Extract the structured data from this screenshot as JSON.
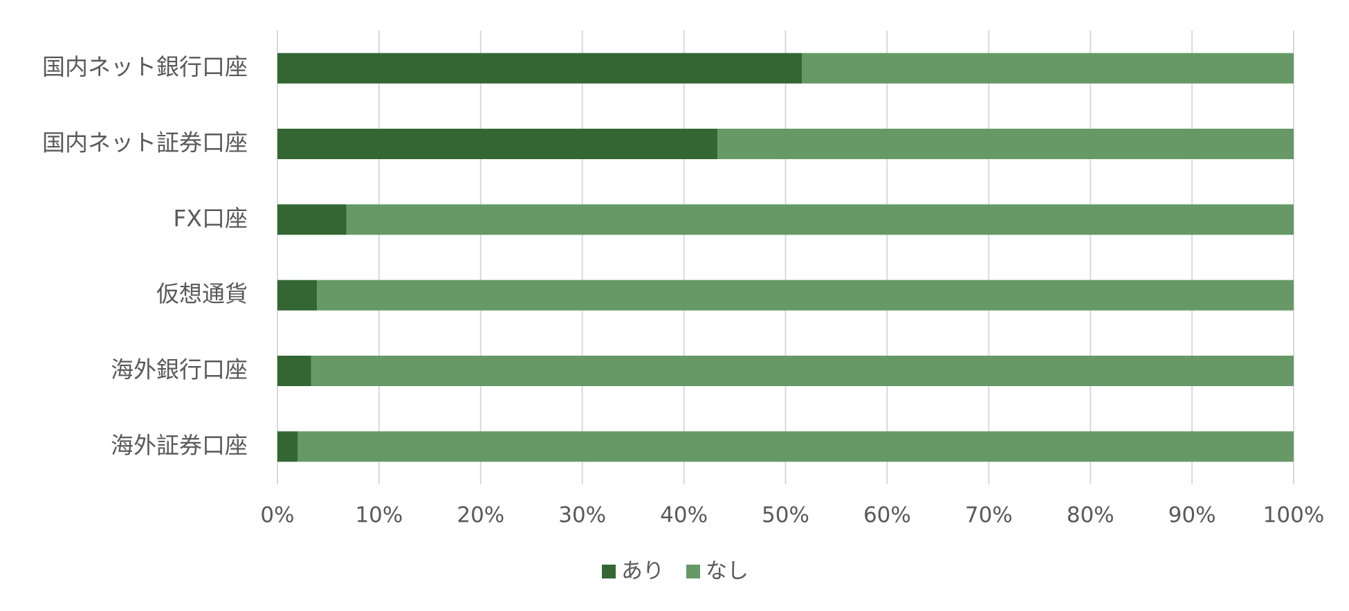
{
  "chart_data": {
    "type": "stacked_bar",
    "categories": [
      "国内ネット銀行口座",
      "国内ネット証券口座",
      "FX口座",
      "仮想通貨",
      "海外銀行口座",
      "海外証券口座"
    ],
    "series": [
      {
        "name": "あり",
        "color": "#336633",
        "values": [
          51.6,
          43.3,
          6.8,
          3.9,
          3.3,
          2.0
        ]
      },
      {
        "name": "なし",
        "color": "#669966",
        "values": [
          48.4,
          56.7,
          93.2,
          96.1,
          96.7,
          98.0
        ]
      }
    ],
    "xlim": [
      0,
      100
    ],
    "xticks": [
      {
        "value": 0,
        "label": "0%"
      },
      {
        "value": 10,
        "label": "10%"
      },
      {
        "value": 20,
        "label": "20%"
      },
      {
        "value": 30,
        "label": "30%"
      },
      {
        "value": 40,
        "label": "40%"
      },
      {
        "value": 50,
        "label": "50%"
      },
      {
        "value": 60,
        "label": "60%"
      },
      {
        "value": 70,
        "label": "70%"
      },
      {
        "value": 80,
        "label": "80%"
      },
      {
        "value": 90,
        "label": "90%"
      },
      {
        "value": 100,
        "label": "100%"
      }
    ],
    "grid": true,
    "legend": "bottom"
  }
}
